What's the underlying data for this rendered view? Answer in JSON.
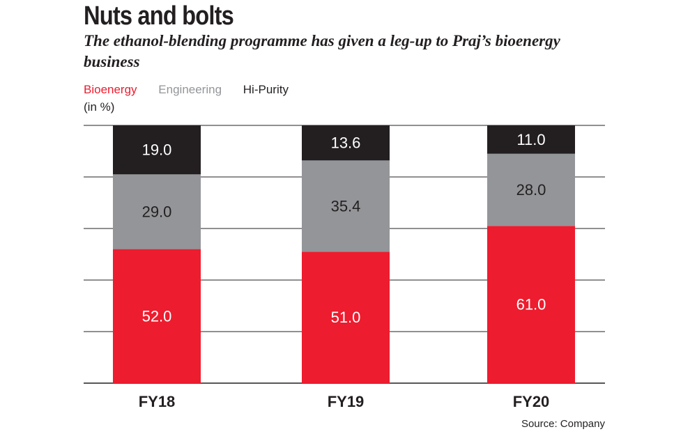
{
  "header": {
    "title": "Nuts and bolts",
    "subtitle": "The ethanol-blending programme has given a leg-up to Praj’s bioenergy business",
    "unit": "(in %)"
  },
  "legend": [
    {
      "label": "Bioenergy",
      "color": "#ed1c2e"
    },
    {
      "label": "Engineering",
      "color": "#939598"
    },
    {
      "label": "Hi-Purity",
      "color": "#231f20"
    }
  ],
  "source": "Source: Company",
  "chart_data": {
    "type": "bar",
    "stacked": true,
    "categories": [
      "FY18",
      "FY19",
      "FY20"
    ],
    "series": [
      {
        "name": "Bioenergy",
        "values": [
          52.0,
          51.0,
          61.0
        ],
        "color": "#ed1c2e",
        "label_color": "#ffffff"
      },
      {
        "name": "Engineering",
        "values": [
          29.0,
          35.4,
          28.0
        ],
        "color": "#939598",
        "label_color": "#231f20"
      },
      {
        "name": "Hi-Purity",
        "values": [
          19.0,
          13.6,
          11.0
        ],
        "color": "#231f20",
        "label_color": "#ffffff"
      }
    ],
    "ylim": [
      0,
      100
    ],
    "grid": true,
    "legend_position": "top-left"
  }
}
